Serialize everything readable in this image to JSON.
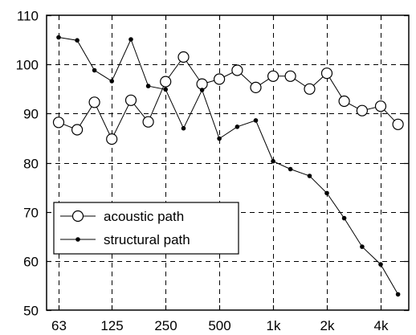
{
  "chart_data": {
    "type": "line",
    "x_tick_labels": [
      "63",
      "125",
      "250",
      "500",
      "1k",
      "2k",
      "4k"
    ],
    "y_tick_labels": [
      "50",
      "60",
      "70",
      "80",
      "90",
      "100",
      "110"
    ],
    "ylim": [
      50,
      110
    ],
    "x_scale": "log (third-octave bands)",
    "grid": true,
    "legend_position": "bottom-left",
    "series": [
      {
        "name": "acoustic path",
        "marker": "open-circle",
        "color": "#000000",
        "x": [
          63,
          80,
          100,
          125,
          160,
          200,
          250,
          315,
          400,
          500,
          630,
          800,
          1000,
          1250,
          1600,
          2000,
          2500,
          3150,
          4000,
          5000
        ],
        "values": [
          88.2,
          86.7,
          92.3,
          84.8,
          92.7,
          88.3,
          96.5,
          101.5,
          96.0,
          97.0,
          98.8,
          95.3,
          97.6,
          97.6,
          95.0,
          98.2,
          92.5,
          90.6,
          91.5,
          87.8
        ]
      },
      {
        "name": "structural path",
        "marker": "dot",
        "color": "#000000",
        "x": [
          63,
          80,
          100,
          125,
          160,
          200,
          250,
          315,
          400,
          500,
          630,
          800,
          1000,
          1250,
          1600,
          2000,
          2500,
          3150,
          4000,
          5000
        ],
        "values": [
          105.5,
          104.9,
          98.8,
          96.6,
          105.1,
          95.6,
          94.9,
          87.0,
          94.8,
          84.9,
          87.3,
          88.6,
          80.3,
          78.7,
          77.3,
          73.8,
          68.7,
          62.9,
          59.3,
          53.2
        ]
      }
    ]
  }
}
